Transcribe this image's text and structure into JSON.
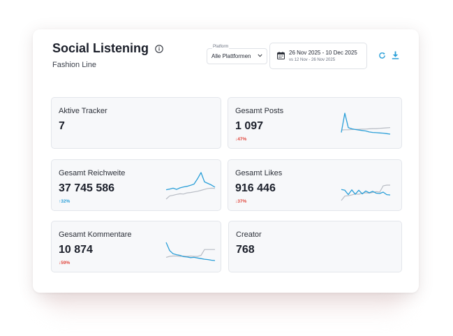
{
  "header": {
    "title": "Social Listening",
    "subtitle": "Fashion Line"
  },
  "filters": {
    "platform_caption": "Platform",
    "platform_value": "Alle Plattformen",
    "date_range": "26 Nov 2025 - 10 Dec 2025",
    "compare_range": "vs 12 Nov - 26 Nov 2025"
  },
  "colors": {
    "accent": "#2a9fd8",
    "negative": "#e0463c",
    "sparkline_current": "#2a9fd8",
    "sparkline_previous": "#b8bcc4"
  },
  "cards": [
    {
      "label": "Aktive Tracker",
      "value": "7",
      "change": ""
    },
    {
      "label": "Gesamt Posts",
      "value": "1 097",
      "change": "↓47%",
      "trend": "down"
    },
    {
      "label": "Gesamt Reichweite",
      "value": "37 745 586",
      "change": "↑32%",
      "trend": "up"
    },
    {
      "label": "Gesamt Likes",
      "value": "916 446",
      "change": "↓37%",
      "trend": "down"
    },
    {
      "label": "Gesamt Kommentare",
      "value": "10 874",
      "change": "↓59%",
      "trend": "down"
    },
    {
      "label": "Creator",
      "value": "768",
      "change": ""
    }
  ],
  "sparklines": {
    "posts": {
      "current": [
        2,
        10,
        4,
        3.5,
        3.2,
        3,
        2.8,
        2.6,
        2.2,
        2,
        1.9,
        1.8,
        1.7,
        1.5,
        1.3
      ],
      "previous": [
        3,
        3.1,
        3.1,
        3.2,
        3.3,
        3.3,
        3.4,
        3.4,
        3.5,
        3.6,
        3.6,
        3.7,
        3.8,
        3.9,
        4
      ]
    },
    "reach": {
      "current": [
        4,
        4.2,
        4.5,
        4.1,
        4.6,
        4.9,
        5.1,
        5.4,
        5.8,
        7.5,
        9.5,
        6.5,
        6,
        5.5,
        4.8
      ],
      "previous": [
        1,
        2,
        2.2,
        2.5,
        2.7,
        2.6,
        3,
        3.1,
        3.3,
        3.5,
        3.8,
        4.1,
        4.4,
        4.5,
        4.4
      ]
    },
    "likes": {
      "current": [
        4,
        3.8,
        2.6,
        3.9,
        2.7,
        3.8,
        2.8,
        3.6,
        3.1,
        3.5,
        3,
        2.9,
        3.3,
        2.6,
        2.5
      ],
      "previous": [
        1,
        2.2,
        2.3,
        2.5,
        2.8,
        2.7,
        3,
        3.1,
        3,
        3.2,
        3.4,
        3.3,
        5,
        5.2,
        5.2
      ]
    },
    "comments": {
      "current": [
        7,
        4.5,
        3.5,
        3.2,
        3,
        2.6,
        2.5,
        2.3,
        2.4,
        2.2,
        2,
        1.8,
        1.7,
        1.5,
        1.4
      ],
      "previous": [
        2.4,
        2.7,
        2.8,
        2.8,
        2.7,
        2.8,
        2.7,
        2.8,
        2.7,
        2.7,
        3,
        4.8,
        4.8,
        4.8,
        4.8
      ]
    }
  }
}
